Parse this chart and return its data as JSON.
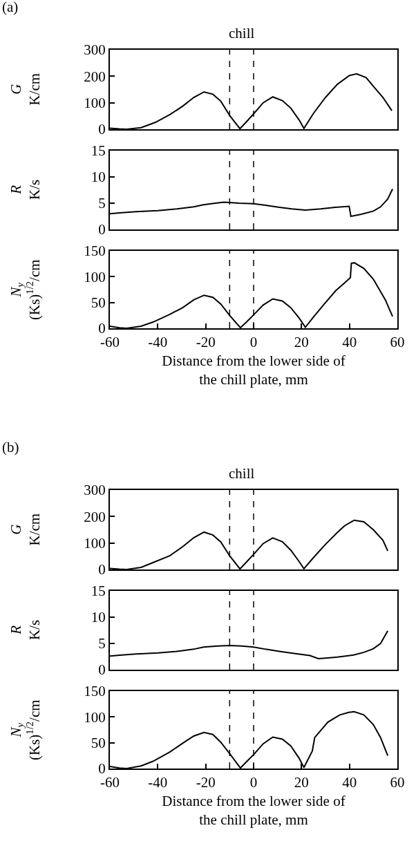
{
  "chart_data": [
    {
      "type": "line",
      "title": "(a)",
      "annotations": [
        "chill"
      ],
      "ylabel": "G\nK/cm",
      "color": "#000000",
      "line_style": "solid",
      "grid": false,
      "tick_labels": "y",
      "xlim": [
        -60,
        60
      ],
      "xticks": [
        -60,
        -40,
        -20,
        0,
        20,
        40,
        60
      ],
      "ylim": [
        0,
        300
      ],
      "yticks": [
        0,
        100,
        200,
        300
      ],
      "ref_lines": [
        {
          "axis": "x",
          "value": -10,
          "line_style": "dashed",
          "color": "#000000"
        },
        {
          "axis": "x",
          "value": 0,
          "line_style": "dashed",
          "color": "#000000"
        }
      ],
      "x": [
        -60,
        -56,
        -53,
        -47,
        -41,
        -35,
        -29.6,
        -25,
        -20.7,
        -17,
        -13.7,
        -10,
        -5.7,
        -3,
        0,
        4,
        8,
        12,
        15.5,
        19,
        21,
        25,
        30,
        35,
        40,
        43,
        47,
        50,
        54,
        57.7
      ],
      "values": [
        4,
        1,
        0,
        6,
        26,
        55,
        87,
        120,
        141,
        132,
        106,
        52,
        2,
        28,
        58,
        100,
        122,
        108,
        80,
        35,
        3,
        60,
        120,
        170,
        203,
        209,
        195,
        162,
        120,
        70
      ]
    },
    {
      "type": "line",
      "ylabel": "R\nK/s",
      "color": "#000000",
      "line_style": "solid",
      "grid": false,
      "tick_labels": "y",
      "xlim": [
        -60,
        60
      ],
      "xticks": [
        -60,
        -40,
        -20,
        0,
        20,
        40,
        60
      ],
      "ylim": [
        0,
        15
      ],
      "yticks": [
        0,
        5,
        10,
        15
      ],
      "ref_lines": [
        {
          "axis": "x",
          "value": -10,
          "line_style": "dashed",
          "color": "#000000"
        },
        {
          "axis": "x",
          "value": 0,
          "line_style": "dashed",
          "color": "#000000"
        }
      ],
      "x": [
        -60,
        -55,
        -49,
        -40,
        -32,
        -25,
        -20.9,
        -16,
        -12.4,
        -6,
        0,
        5,
        10.8,
        16,
        21.6,
        28,
        34,
        39.9,
        40.6,
        45,
        50,
        53,
        56,
        58
      ],
      "values": [
        3.0,
        3.2,
        3.4,
        3.6,
        3.9,
        4.3,
        4.7,
        5.0,
        5.2,
        5.0,
        4.9,
        4.6,
        4.2,
        3.9,
        3.7,
        3.9,
        4.2,
        4.4,
        2.5,
        2.9,
        3.5,
        4.3,
        5.8,
        7.7
      ]
    },
    {
      "type": "line",
      "ylabel": "N$_{y}$\n(Ks)$^{1/2}$/cm",
      "xlabel": "Distance from the lower side of the chill plate, mm",
      "color": "#000000",
      "line_style": "solid",
      "grid": false,
      "xlim": [
        -60,
        60
      ],
      "xticks": [
        -60,
        -40,
        -20,
        0,
        20,
        40,
        60
      ],
      "ylim": [
        0,
        150
      ],
      "yticks": [
        0,
        50,
        100,
        150
      ],
      "ref_lines": [
        {
          "axis": "x",
          "value": -10,
          "line_style": "dashed",
          "color": "#000000"
        },
        {
          "axis": "x",
          "value": 0,
          "line_style": "dashed",
          "color": "#000000"
        }
      ],
      "x": [
        -60,
        -56,
        -53,
        -47,
        -42,
        -35,
        -29.6,
        -25,
        -20.7,
        -17,
        -13.7,
        -10,
        -5.5,
        -3,
        0,
        4,
        8,
        12,
        15.5,
        19,
        21.6,
        25,
        29.5,
        34.3,
        38,
        40.4,
        40.8,
        42,
        46,
        50,
        55,
        58
      ],
      "values": [
        4,
        1,
        0,
        4,
        12,
        27,
        40,
        55,
        64,
        60,
        47,
        25,
        1,
        12,
        26,
        45,
        57,
        53,
        40,
        20,
        2,
        22,
        47,
        73,
        88,
        98,
        126,
        127,
        116,
        95,
        55,
        23
      ]
    },
    {
      "type": "line",
      "title": "(b)",
      "annotations": [
        "chill"
      ],
      "ylabel": "G\nK/cm",
      "color": "#000000",
      "line_style": "solid",
      "grid": false,
      "tick_labels": "y",
      "xlim": [
        -60,
        60
      ],
      "xticks": [
        -60,
        -40,
        -20,
        0,
        20,
        40,
        60
      ],
      "ylim": [
        0,
        300
      ],
      "yticks": [
        0,
        100,
        200,
        300
      ],
      "ref_lines": [
        {
          "axis": "x",
          "value": -10,
          "line_style": "dashed",
          "color": "#000000"
        },
        {
          "axis": "x",
          "value": 0,
          "line_style": "dashed",
          "color": "#000000"
        }
      ],
      "x": [
        -60,
        -56,
        -53,
        -47,
        -42,
        -35,
        -29.6,
        -25,
        -20.7,
        -17,
        -13.7,
        -10,
        -5.7,
        -3,
        0,
        4,
        8,
        12,
        15.5,
        19,
        21,
        25,
        30,
        35,
        38,
        42,
        46,
        50,
        54,
        56
      ],
      "values": [
        4,
        1,
        0,
        8,
        26,
        52,
        86,
        120,
        141,
        130,
        104,
        52,
        2,
        28,
        57,
        98,
        119,
        105,
        73,
        30,
        3,
        45,
        95,
        140,
        165,
        186,
        180,
        150,
        110,
        70
      ]
    },
    {
      "type": "line",
      "ylabel": "R\nK/s",
      "color": "#000000",
      "line_style": "solid",
      "grid": false,
      "tick_labels": "y",
      "xlim": [
        -60,
        60
      ],
      "xticks": [
        -60,
        -40,
        -20,
        0,
        20,
        40,
        60
      ],
      "ylim": [
        0,
        15
      ],
      "yticks": [
        0,
        5,
        10,
        15
      ],
      "ref_lines": [
        {
          "axis": "x",
          "value": -10,
          "line_style": "dashed",
          "color": "#000000"
        },
        {
          "axis": "x",
          "value": 0,
          "line_style": "dashed",
          "color": "#000000"
        }
      ],
      "x": [
        -60,
        -55,
        -49,
        -40,
        -32,
        -25,
        -20.9,
        -15,
        -10,
        -5,
        0,
        5,
        10.8,
        17,
        23.5,
        27,
        30,
        35,
        41.7,
        46,
        50,
        53,
        56
      ],
      "values": [
        2.6,
        2.8,
        3.0,
        3.2,
        3.5,
        3.9,
        4.3,
        4.5,
        4.6,
        4.5,
        4.3,
        3.9,
        3.5,
        3.1,
        2.7,
        2.1,
        2.2,
        2.4,
        2.8,
        3.3,
        4.0,
        5.0,
        7.4
      ]
    },
    {
      "type": "line",
      "ylabel": "N$_{y}$\n(Ks)$^{1/2}$/cm",
      "xlabel": "Distance from the lower side of the chill plate, mm",
      "color": "#000000",
      "line_style": "solid",
      "grid": false,
      "xlim": [
        -60,
        60
      ],
      "xticks": [
        -60,
        -40,
        -20,
        0,
        20,
        40,
        60
      ],
      "ylim": [
        0,
        150
      ],
      "yticks": [
        0,
        50,
        100,
        150
      ],
      "ref_lines": [
        {
          "axis": "x",
          "value": -10,
          "line_style": "dashed",
          "color": "#000000"
        },
        {
          "axis": "x",
          "value": 0,
          "line_style": "dashed",
          "color": "#000000"
        }
      ],
      "x": [
        -60,
        -56,
        -53,
        -47,
        -42,
        -35,
        -29.6,
        -25,
        -20.7,
        -17,
        -13.7,
        -10,
        -5.5,
        -3,
        0,
        4,
        8,
        12,
        15.5,
        19,
        21,
        24.5,
        25.5,
        31,
        36,
        40,
        42,
        46,
        50,
        53,
        56
      ],
      "values": [
        4,
        1,
        0,
        5,
        14,
        32,
        49,
        63,
        70,
        66,
        51,
        29,
        1,
        13,
        27,
        48,
        61,
        57,
        44,
        20,
        2,
        34,
        60,
        90,
        104,
        109,
        110,
        104,
        85,
        60,
        25
      ]
    }
  ]
}
